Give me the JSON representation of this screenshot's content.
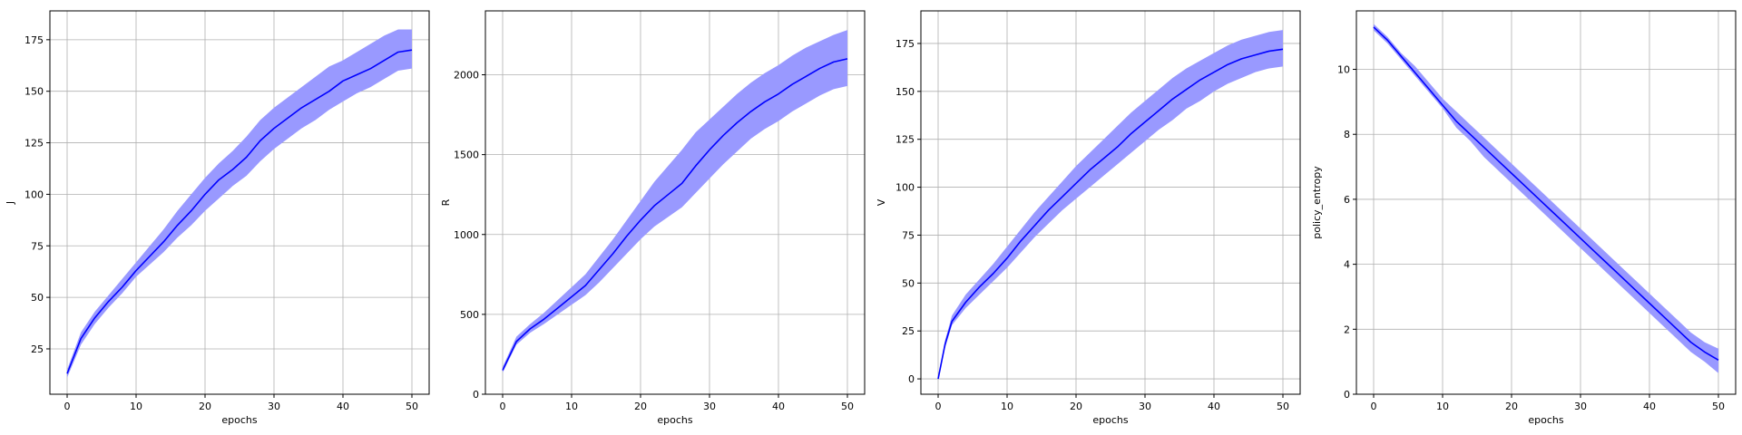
{
  "chart_data": [
    {
      "type": "line",
      "xlabel": "epochs",
      "ylabel": "J",
      "xlim": [
        -2.5,
        52.5
      ],
      "ylim": [
        3,
        189
      ],
      "xticks": [
        0,
        10,
        20,
        30,
        40,
        50
      ],
      "yticks": [
        25,
        50,
        75,
        100,
        125,
        150,
        175
      ],
      "grid": true,
      "colors": {
        "line": "#0000ff",
        "band": "#9999ff"
      },
      "x": [
        0,
        2,
        4,
        6,
        8,
        10,
        12,
        14,
        16,
        18,
        20,
        22,
        24,
        26,
        28,
        30,
        32,
        34,
        36,
        38,
        40,
        42,
        44,
        46,
        48,
        50
      ],
      "mean": [
        13,
        30,
        40,
        48,
        55,
        63,
        70,
        77,
        85,
        92,
        100,
        107,
        112,
        118,
        126,
        132,
        137,
        142,
        146,
        150,
        155,
        158,
        161,
        165,
        169,
        170
      ],
      "upper": [
        15,
        33,
        43,
        51,
        59,
        67,
        75,
        83,
        92,
        100,
        108,
        115,
        121,
        128,
        136,
        142,
        147,
        152,
        157,
        162,
        165,
        169,
        173,
        177,
        180,
        180
      ],
      "lower": [
        11,
        27,
        37,
        45,
        52,
        60,
        66,
        72,
        79,
        85,
        92,
        98,
        104,
        109,
        116,
        122,
        127,
        132,
        136,
        141,
        145,
        149,
        152,
        156,
        160,
        161
      ]
    },
    {
      "type": "line",
      "xlabel": "epochs",
      "ylabel": "R",
      "xlim": [
        -2.5,
        52.5
      ],
      "ylim": [
        0,
        2400
      ],
      "xticks": [
        0,
        10,
        20,
        30,
        40,
        50
      ],
      "yticks": [
        0,
        500,
        1000,
        1500,
        2000
      ],
      "grid": true,
      "colors": {
        "line": "#0000ff",
        "band": "#9999ff"
      },
      "x": [
        0,
        2,
        4,
        6,
        8,
        10,
        12,
        14,
        16,
        18,
        20,
        22,
        24,
        26,
        28,
        30,
        32,
        34,
        36,
        38,
        40,
        42,
        44,
        46,
        48,
        50
      ],
      "mean": [
        150,
        330,
        410,
        470,
        540,
        610,
        680,
        780,
        880,
        990,
        1090,
        1180,
        1250,
        1320,
        1430,
        1530,
        1620,
        1700,
        1770,
        1830,
        1880,
        1940,
        1990,
        2040,
        2080,
        2100
      ],
      "upper": [
        170,
        360,
        440,
        510,
        590,
        670,
        750,
        860,
        970,
        1090,
        1210,
        1330,
        1430,
        1530,
        1640,
        1720,
        1800,
        1880,
        1950,
        2010,
        2060,
        2120,
        2170,
        2210,
        2250,
        2280
      ],
      "lower": [
        135,
        310,
        385,
        440,
        500,
        560,
        620,
        700,
        790,
        880,
        970,
        1050,
        1110,
        1170,
        1260,
        1350,
        1440,
        1520,
        1600,
        1660,
        1710,
        1770,
        1820,
        1870,
        1910,
        1930
      ]
    },
    {
      "type": "line",
      "xlabel": "epochs",
      "ylabel": "V",
      "xlim": [
        -2.5,
        52.5
      ],
      "ylim": [
        -8,
        192
      ],
      "xticks": [
        0,
        10,
        20,
        30,
        40,
        50
      ],
      "yticks": [
        0,
        25,
        50,
        75,
        100,
        125,
        150,
        175
      ],
      "grid": true,
      "colors": {
        "line": "#0000ff",
        "band": "#9999ff"
      },
      "x": [
        0,
        1,
        2,
        4,
        6,
        8,
        10,
        12,
        14,
        16,
        18,
        20,
        22,
        24,
        26,
        28,
        30,
        32,
        34,
        36,
        38,
        40,
        42,
        44,
        46,
        48,
        50
      ],
      "mean": [
        0,
        18,
        30,
        40,
        48,
        55,
        63,
        72,
        80,
        88,
        95,
        102,
        109,
        115,
        121,
        128,
        134,
        140,
        146,
        151,
        156,
        160,
        164,
        167,
        169,
        171,
        172
      ],
      "upper": [
        0,
        20,
        33,
        44,
        52,
        60,
        69,
        78,
        87,
        95,
        103,
        111,
        118,
        125,
        132,
        139,
        145,
        151,
        157,
        162,
        166,
        170,
        174,
        177,
        179,
        181,
        182
      ],
      "lower": [
        0,
        16,
        28,
        37,
        44,
        51,
        58,
        66,
        74,
        81,
        88,
        94,
        100,
        106,
        112,
        118,
        124,
        130,
        135,
        141,
        145,
        150,
        154,
        157,
        160,
        162,
        163
      ]
    },
    {
      "type": "line",
      "xlabel": "epochs",
      "ylabel": "policy_entropy",
      "xlim": [
        -2.5,
        52.5
      ],
      "ylim": [
        0,
        11.8
      ],
      "xticks": [
        0,
        10,
        20,
        30,
        40,
        50
      ],
      "yticks": [
        0,
        2,
        4,
        6,
        8,
        10
      ],
      "grid": true,
      "colors": {
        "line": "#0000ff",
        "band": "#9999ff"
      },
      "x": [
        0,
        2,
        4,
        6,
        8,
        10,
        12,
        14,
        16,
        18,
        20,
        22,
        24,
        26,
        28,
        30,
        32,
        34,
        36,
        38,
        40,
        42,
        44,
        46,
        48,
        50
      ],
      "mean": [
        11.3,
        10.9,
        10.4,
        9.9,
        9.4,
        8.9,
        8.4,
        8.0,
        7.6,
        7.2,
        6.8,
        6.4,
        6.0,
        5.6,
        5.2,
        4.8,
        4.4,
        4.0,
        3.6,
        3.2,
        2.8,
        2.4,
        2.0,
        1.6,
        1.3,
        1.05
      ],
      "upper": [
        11.4,
        11.0,
        10.5,
        10.1,
        9.6,
        9.1,
        8.7,
        8.3,
        7.9,
        7.5,
        7.1,
        6.7,
        6.3,
        5.9,
        5.5,
        5.1,
        4.7,
        4.3,
        3.9,
        3.5,
        3.1,
        2.7,
        2.3,
        1.9,
        1.6,
        1.4
      ],
      "lower": [
        11.2,
        10.8,
        10.3,
        9.8,
        9.3,
        8.8,
        8.2,
        7.8,
        7.3,
        6.9,
        6.5,
        6.1,
        5.7,
        5.3,
        4.9,
        4.5,
        4.1,
        3.7,
        3.3,
        2.9,
        2.5,
        2.1,
        1.7,
        1.3,
        1.0,
        0.65
      ]
    }
  ]
}
